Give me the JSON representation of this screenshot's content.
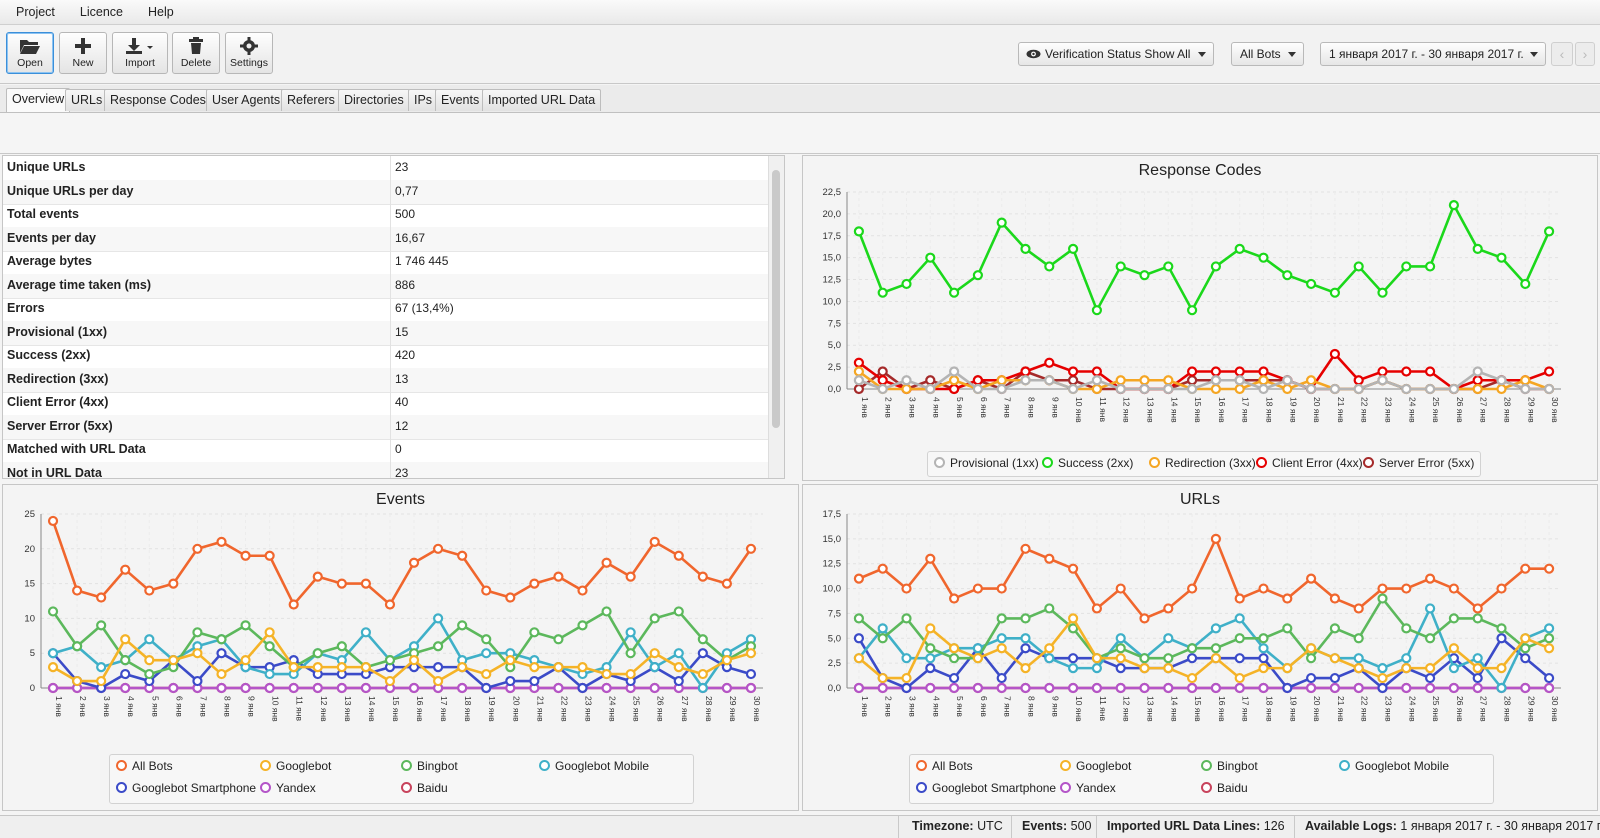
{
  "menu": [
    "Project",
    "Licence",
    "Help"
  ],
  "toolbar": {
    "buttons": [
      {
        "label": "Open",
        "icon": "folder-open-icon"
      },
      {
        "label": "New",
        "icon": "plus-icon"
      },
      {
        "label": "Import",
        "icon": "download-icon"
      },
      {
        "label": "Delete",
        "icon": "trash-icon"
      },
      {
        "label": "Settings",
        "icon": "gear-icon"
      }
    ],
    "verification_label": "Verification Status Show All",
    "bots_label": "All Bots",
    "date_range": "1 января 2017 г. - 30 января 2017 г."
  },
  "tabs": [
    "Overview",
    "URLs",
    "Response Codes",
    "User Agents",
    "Referers",
    "Directories",
    "IPs",
    "Events",
    "Imported URL Data"
  ],
  "stats": [
    {
      "key": "Unique URLs",
      "value": "23"
    },
    {
      "key": "Unique URLs per day",
      "value": "0,77"
    },
    {
      "key": "Total events",
      "value": "500"
    },
    {
      "key": "Events per day",
      "value": "16,67"
    },
    {
      "key": "Average bytes",
      "value": "1 746 445"
    },
    {
      "key": "Average time taken (ms)",
      "value": "886"
    },
    {
      "key": "Errors",
      "value": "67 (13,4%)"
    },
    {
      "key": "Provisional (1xx)",
      "value": "15"
    },
    {
      "key": "Success (2xx)",
      "value": "420"
    },
    {
      "key": "Redirection (3xx)",
      "value": "13"
    },
    {
      "key": "Client Error (4xx)",
      "value": "40"
    },
    {
      "key": "Server Error (5xx)",
      "value": "12"
    },
    {
      "key": "Matched with URL Data",
      "value": "0"
    },
    {
      "key": "Not in URL Data",
      "value": "23"
    }
  ],
  "chart_data": [
    {
      "type": "line",
      "title": "Response Codes",
      "ylim": [
        0,
        22.5
      ],
      "yticks": [
        "0,0",
        "2,5",
        "5,0",
        "7,5",
        "10,0",
        "12,5",
        "15,0",
        "17,5",
        "20,0",
        "22,5"
      ],
      "x": [
        "1 янв",
        "2 янв",
        "3 янв",
        "4 янв",
        "5 янв",
        "6 янв",
        "7 янв",
        "8 янв",
        "9 янв",
        "10 янв",
        "11 янв",
        "12 янв",
        "13 янв",
        "14 янв",
        "15 янв",
        "16 янв",
        "17 янв",
        "18 янв",
        "19 янв",
        "20 янв",
        "21 янв",
        "22 янв",
        "23 янв",
        "24 янв",
        "25 янв",
        "26 янв",
        "27 янв",
        "28 янв",
        "29 янв",
        "30 янв"
      ],
      "legend_position": "bottom",
      "series": [
        {
          "name": "Provisional (1xx)",
          "color": "#b4b4b4",
          "values": [
            1,
            0,
            1,
            0,
            2,
            0,
            0,
            1,
            1,
            0,
            1,
            0,
            0,
            0,
            0,
            1,
            1,
            0,
            1,
            0,
            0,
            0,
            1,
            0,
            0,
            0,
            2,
            1,
            0,
            0
          ]
        },
        {
          "name": "Success (2xx)",
          "color": "#1bd81b",
          "values": [
            18,
            11,
            12,
            15,
            11,
            13,
            19,
            16,
            14,
            16,
            9,
            14,
            13,
            14,
            9,
            14,
            16,
            15,
            13,
            12,
            11,
            14,
            11,
            14,
            14,
            21,
            16,
            15,
            12,
            18
          ]
        },
        {
          "name": "Redirection (3xx)",
          "color": "#f5a623",
          "values": [
            2,
            0,
            0,
            0,
            1,
            0,
            1,
            1,
            1,
            0,
            0,
            1,
            1,
            1,
            0,
            0,
            0,
            1,
            0,
            1,
            0,
            0,
            1,
            0,
            0,
            0,
            0,
            0,
            1,
            0
          ]
        },
        {
          "name": "Client Error (4xx)",
          "color": "#e60000",
          "values": [
            3,
            1,
            0,
            0,
            0,
            1,
            1,
            2,
            3,
            2,
            2,
            0,
            0,
            0,
            2,
            2,
            2,
            2,
            1,
            0,
            4,
            1,
            2,
            2,
            2,
            0,
            1,
            1,
            1,
            2
          ]
        },
        {
          "name": "Server Error (5xx)",
          "color": "#a52a2a",
          "values": [
            0,
            2,
            0,
            1,
            0,
            1,
            0,
            2,
            1,
            1,
            0,
            0,
            0,
            0,
            1,
            1,
            1,
            1,
            1,
            0,
            0,
            0,
            1,
            0,
            0,
            0,
            0,
            1,
            0,
            0
          ]
        }
      ]
    },
    {
      "type": "line",
      "title": "Events",
      "ylim": [
        0,
        25
      ],
      "yticks": [
        "0",
        "5",
        "10",
        "15",
        "20",
        "25"
      ],
      "x": [
        "1 янв",
        "2 янв",
        "3 янв",
        "4 янв",
        "5 янв",
        "6 янв",
        "7 янв",
        "8 янв",
        "9 янв",
        "10 янв",
        "11 янв",
        "12 янв",
        "13 янв",
        "14 янв",
        "15 янв",
        "16 янв",
        "17 янв",
        "18 янв",
        "19 янв",
        "20 янв",
        "21 янв",
        "22 янв",
        "23 янв",
        "24 янв",
        "25 янв",
        "26 янв",
        "27 янв",
        "28 янв",
        "29 янв",
        "30 янв"
      ],
      "legend_position": "bottom",
      "series": [
        {
          "name": "All Bots",
          "color": "#f0662d",
          "values": [
            24,
            14,
            13,
            17,
            14,
            15,
            20,
            21,
            19,
            19,
            12,
            16,
            15,
            15,
            12,
            18,
            20,
            19,
            14,
            13,
            15,
            16,
            14,
            18,
            16,
            21,
            19,
            16,
            15,
            20
          ]
        },
        {
          "name": "Googlebot",
          "color": "#f5b327",
          "values": [
            3,
            1,
            1,
            7,
            4,
            4,
            5,
            2,
            4,
            8,
            3,
            3,
            3,
            3,
            1,
            4,
            1,
            3,
            2,
            4,
            3,
            3,
            3,
            2,
            2,
            5,
            3,
            2,
            4,
            5
          ]
        },
        {
          "name": "Bingbot",
          "color": "#5cb85c",
          "values": [
            11,
            6,
            9,
            4,
            2,
            3,
            8,
            7,
            9,
            6,
            3,
            5,
            6,
            3,
            4,
            5,
            6,
            9,
            7,
            3,
            8,
            7,
            9,
            11,
            5,
            10,
            11,
            7,
            4,
            6
          ]
        },
        {
          "name": "Googlebot Mobile",
          "color": "#3fb0c8",
          "values": [
            5,
            6,
            3,
            4,
            7,
            4,
            6,
            7,
            3,
            2,
            2,
            5,
            4,
            8,
            4,
            6,
            10,
            4,
            5,
            5,
            4,
            3,
            2,
            3,
            8,
            3,
            5,
            0,
            5,
            7
          ]
        },
        {
          "name": "Googlebot Smartphone",
          "color": "#3b4bc8",
          "values": [
            5,
            1,
            0,
            2,
            1,
            4,
            1,
            5,
            3,
            3,
            4,
            2,
            2,
            2,
            3,
            3,
            3,
            3,
            0,
            1,
            1,
            3,
            0,
            2,
            1,
            3,
            1,
            5,
            3,
            2
          ]
        },
        {
          "name": "Yandex",
          "color": "#b455c8",
          "values": [
            0,
            0,
            0,
            0,
            0,
            0,
            0,
            0,
            0,
            0,
            0,
            0,
            0,
            0,
            0,
            0,
            0,
            0,
            0,
            0,
            0,
            0,
            0,
            0,
            0,
            0,
            0,
            0,
            0,
            0
          ]
        },
        {
          "name": "Baidu",
          "color": "#c8435c",
          "values": [
            0,
            0,
            0,
            0,
            0,
            0,
            0,
            0,
            0,
            0,
            0,
            0,
            0,
            0,
            0,
            0,
            0,
            0,
            0,
            0,
            0,
            0,
            0,
            0,
            0,
            0,
            0,
            0,
            0,
            0
          ]
        }
      ]
    },
    {
      "type": "line",
      "title": "URLs",
      "ylim": [
        0,
        17.5
      ],
      "yticks": [
        "0,0",
        "2,5",
        "5,0",
        "7,5",
        "10,0",
        "12,5",
        "15,0",
        "17,5"
      ],
      "x": [
        "1 янв",
        "2 янв",
        "3 янв",
        "4 янв",
        "5 янв",
        "6 янв",
        "7 янв",
        "8 янв",
        "9 янв",
        "10 янв",
        "11 янв",
        "12 янв",
        "13 янв",
        "14 янв",
        "15 янв",
        "16 янв",
        "17 янв",
        "18 янв",
        "19 янв",
        "20 янв",
        "21 янв",
        "22 янв",
        "23 янв",
        "24 янв",
        "25 янв",
        "26 янв",
        "27 янв",
        "28 янв",
        "29 янв",
        "30 янв"
      ],
      "legend_position": "bottom",
      "series": [
        {
          "name": "All Bots",
          "color": "#f0662d",
          "values": [
            11,
            12,
            10,
            13,
            9,
            10,
            10,
            14,
            13,
            12,
            8,
            10,
            7,
            8,
            10,
            15,
            9,
            10,
            9,
            11,
            9,
            8,
            10,
            10,
            11,
            10,
            8,
            10,
            12,
            12
          ]
        },
        {
          "name": "Googlebot",
          "color": "#f5b327",
          "values": [
            3,
            1,
            1,
            6,
            4,
            3,
            4,
            2,
            4,
            7,
            3,
            3,
            2,
            2,
            1,
            3,
            1,
            2,
            2,
            4,
            3,
            2,
            1,
            2,
            2,
            4,
            2,
            2,
            5,
            4
          ]
        },
        {
          "name": "Bingbot",
          "color": "#5cb85c",
          "values": [
            7,
            5,
            7,
            4,
            3,
            3,
            7,
            7,
            8,
            6,
            3,
            4,
            3,
            3,
            4,
            4,
            5,
            5,
            6,
            3,
            6,
            5,
            9,
            6,
            5,
            7,
            7,
            6,
            4,
            5
          ]
        },
        {
          "name": "Googlebot Mobile",
          "color": "#3fb0c8",
          "values": [
            3,
            6,
            3,
            3,
            4,
            4,
            5,
            5,
            3,
            2,
            2,
            5,
            3,
            5,
            4,
            6,
            7,
            4,
            2,
            4,
            3,
            3,
            2,
            3,
            8,
            2,
            3,
            0,
            5,
            6
          ]
        },
        {
          "name": "Googlebot Smartphone",
          "color": "#3b4bc8",
          "values": [
            5,
            1,
            0,
            2,
            1,
            4,
            1,
            4,
            3,
            3,
            3,
            2,
            2,
            2,
            3,
            3,
            3,
            3,
            0,
            1,
            1,
            2,
            0,
            2,
            1,
            3,
            1,
            5,
            3,
            1
          ]
        },
        {
          "name": "Yandex",
          "color": "#b455c8",
          "values": [
            0,
            0,
            0,
            0,
            0,
            0,
            0,
            0,
            0,
            0,
            0,
            0,
            0,
            0,
            0,
            0,
            0,
            0,
            0,
            0,
            0,
            0,
            0,
            0,
            0,
            0,
            0,
            0,
            0,
            0
          ]
        },
        {
          "name": "Baidu",
          "color": "#c8435c",
          "values": [
            0,
            0,
            0,
            0,
            0,
            0,
            0,
            0,
            0,
            0,
            0,
            0,
            0,
            0,
            0,
            0,
            0,
            0,
            0,
            0,
            0,
            0,
            0,
            0,
            0,
            0,
            0,
            0,
            0,
            0
          ]
        }
      ]
    }
  ],
  "status": {
    "timezone_label": "Timezone:",
    "timezone_value": "UTC",
    "events_label": "Events:",
    "events_value": "500",
    "imported_label": "Imported URL Data Lines:",
    "imported_value": "126",
    "logs_label": "Available Logs:",
    "logs_value": "1 января 2017 г. - 30 января 2017 г."
  }
}
